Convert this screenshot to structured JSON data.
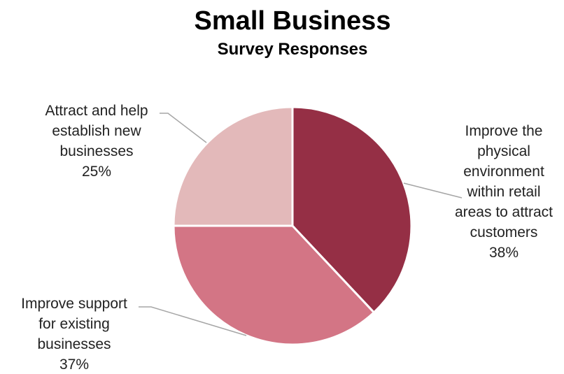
{
  "chart_data": {
    "type": "pie",
    "title": "Small Business",
    "subtitle": "Survey Responses",
    "slices": [
      {
        "label": "Improve the physical environment within retail areas to attract customers",
        "label_lines": [
          "Improve the",
          "physical",
          "environment",
          "within retail",
          "areas to attract",
          "customers"
        ],
        "percent_label": "38%",
        "value": 38,
        "color": "#952f45"
      },
      {
        "label": "Improve support for existing businesses",
        "label_lines": [
          "Improve support",
          "for existing",
          "businesses"
        ],
        "percent_label": "37%",
        "value": 37,
        "color": "#d37585"
      },
      {
        "label": "Attract and help establish new businesses",
        "label_lines": [
          "Attract and help",
          "establish new",
          "businesses"
        ],
        "percent_label": "25%",
        "value": 25,
        "color": "#e3b9ba"
      }
    ],
    "leader_color": "#a6a6a6"
  }
}
